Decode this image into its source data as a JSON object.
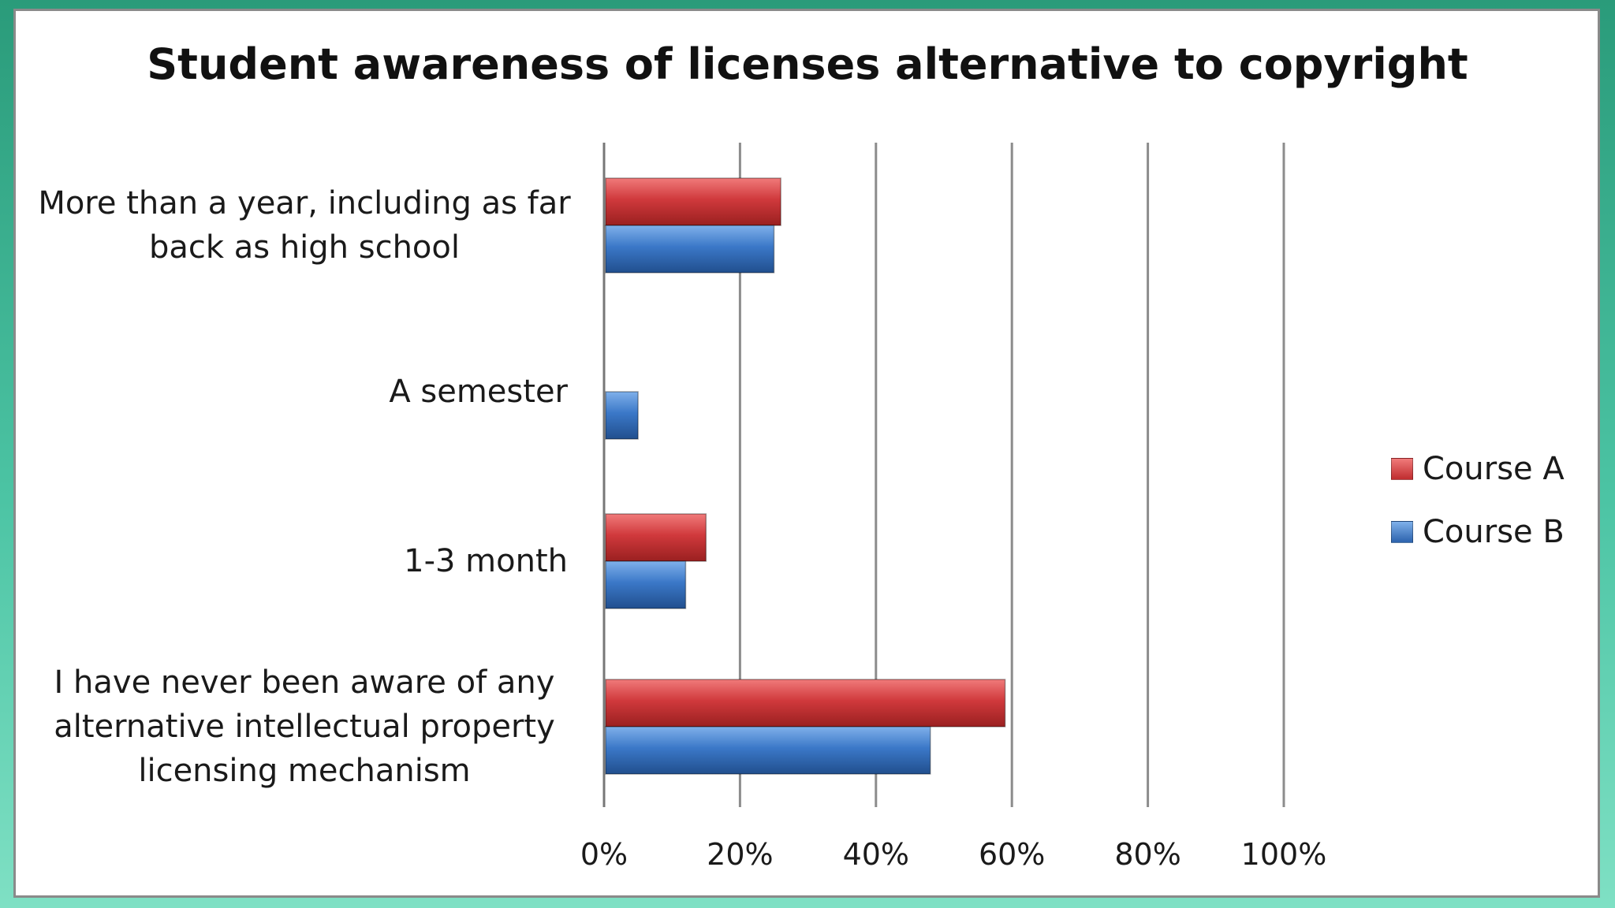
{
  "chart_data": {
    "type": "bar",
    "orientation": "horizontal",
    "title": "Student awareness of licenses alternative to copyright",
    "categories": [
      "More than a year, including as far back as high school",
      "A semester",
      "1-3 month",
      "I have never been aware of any alternative intellectual property licensing mechanism"
    ],
    "category_lines": [
      [
        "More than a year, including as far",
        "back as high school"
      ],
      [
        "A semester"
      ],
      [
        "1-3 month"
      ],
      [
        "I have never been aware of any",
        "alternative intellectual property",
        "licensing mechanism"
      ]
    ],
    "series": [
      {
        "name": "Course A",
        "color": "#d0393c",
        "values": [
          26,
          0,
          15,
          59
        ]
      },
      {
        "name": "Course B",
        "color": "#3b78c8",
        "values": [
          25,
          5,
          12,
          48
        ]
      }
    ],
    "xlim": [
      0,
      100
    ],
    "tick_labels": [
      "0%",
      "20%",
      "40%",
      "60%",
      "80%",
      "100%"
    ],
    "grid": true,
    "legend_position": "right"
  }
}
